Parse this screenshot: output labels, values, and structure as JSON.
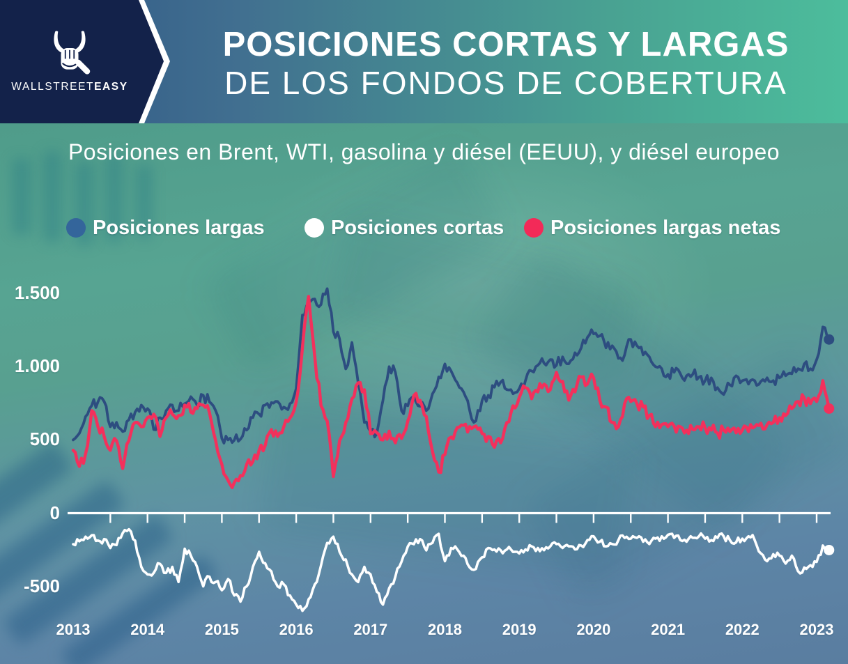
{
  "brand": {
    "word_regular": "WALLSTREET",
    "word_bold": "EASY",
    "icon": "bull-horns-fist-icon",
    "panel_color": "#13224a"
  },
  "header": {
    "title_line1": "POSICIONES CORTAS Y LARGAS",
    "title_line2": "DE LOS FONDOS DE COBERTURA"
  },
  "subtitle": "Posiciones en Brent, WTI, gasolina y diésel (EEUU), y diésel europeo",
  "legend": [
    {
      "label": "Posiciones largas",
      "color": "#34659b"
    },
    {
      "label": "Posiciones cortas",
      "color": "#ffffff"
    },
    {
      "label": "Posiciones largas netas",
      "color": "#f32a58"
    }
  ],
  "chart_data": {
    "type": "line",
    "title": "Posiciones cortas y largas de los fondos de cobertura",
    "x_unit": "months",
    "x_start": "2013-01",
    "x_end": "2023-03",
    "points_per_year": 12,
    "x_tick_labels": [
      "2013",
      "2014",
      "2015",
      "2016",
      "2017",
      "2018",
      "2019",
      "2020",
      "2021",
      "2022",
      "2023"
    ],
    "y_ticks": [
      {
        "label": "1.500",
        "value": 1500
      },
      {
        "label": "1.000",
        "value": 1000
      },
      {
        "label": "500",
        "value": 500
      },
      {
        "label": "0",
        "value": 0
      },
      {
        "label": "-500",
        "value": -500
      }
    ],
    "ylim": [
      -700,
      1600
    ],
    "grid": "none",
    "zero_axis": {
      "color": "#ffffff",
      "half_year_ticks": true
    },
    "legend_position": "top",
    "series": [
      {
        "name": "Posiciones largas",
        "color": "#2d4d80",
        "end_dot": true,
        "values": [
          500,
          545,
          660,
          735,
          760,
          762,
          590,
          620,
          557,
          638,
          690,
          738,
          714,
          571,
          652,
          700,
          738,
          700,
          748,
          795,
          738,
          805,
          760,
          700,
          510,
          500,
          498,
          505,
          567,
          652,
          676,
          738,
          755,
          762,
          724,
          748,
          850,
          1352,
          1430,
          1462,
          1424,
          1533,
          1240,
          1190,
          985,
          1165,
          890,
          620,
          557,
          543,
          770,
          1000,
          962,
          700,
          733,
          800,
          730,
          700,
          815,
          930,
          1019,
          971,
          890,
          828,
          700,
          630,
          770,
          805,
          860,
          895,
          843,
          815,
          850,
          905,
          971,
          1010,
          1024,
          1048,
          1010,
          1067,
          1020,
          1095,
          1129,
          1200,
          1224,
          1210,
          1129,
          1143,
          1057,
          1081,
          1186,
          1143,
          1081,
          1067,
          1000,
          986,
          948,
          962,
          952,
          938,
          948,
          929,
          905,
          924,
          857,
          810,
          876,
          938,
          905,
          881,
          905,
          900,
          924,
          905,
          924,
          938,
          952,
          986,
          1019,
          986,
          1048,
          1271,
          1186
        ]
      },
      {
        "name": "Posiciones cortas",
        "color": "#ffffff",
        "end_dot": true,
        "values": [
          -212,
          -192,
          -161,
          -151,
          -187,
          -177,
          -238,
          -218,
          -136,
          -110,
          -187,
          -367,
          -418,
          -408,
          -346,
          -408,
          -367,
          -470,
          -243,
          -290,
          -367,
          -500,
          -434,
          -470,
          -526,
          -450,
          -562,
          -604,
          -500,
          -367,
          -264,
          -342,
          -398,
          -500,
          -486,
          -562,
          -624,
          -667,
          -588,
          -486,
          -357,
          -203,
          -161,
          -264,
          -316,
          -418,
          -470,
          -367,
          -418,
          -536,
          -624,
          -512,
          -434,
          -331,
          -228,
          -212,
          -177,
          -254,
          -203,
          -141,
          -328,
          -238,
          -248,
          -290,
          -371,
          -381,
          -301,
          -238,
          -248,
          -253,
          -248,
          -265,
          -275,
          -248,
          -227,
          -238,
          -253,
          -227,
          -211,
          -238,
          -227,
          -248,
          -221,
          -184,
          -158,
          -195,
          -227,
          -211,
          -184,
          -169,
          -174,
          -169,
          -195,
          -211,
          -174,
          -158,
          -148,
          -169,
          -184,
          -195,
          -169,
          -158,
          -174,
          -184,
          -169,
          -158,
          -184,
          -200,
          -174,
          -158,
          -184,
          -275,
          -328,
          -280,
          -290,
          -344,
          -290,
          -397,
          -371,
          -355,
          -333,
          -221,
          -252
        ]
      },
      {
        "name": "Posiciones largas netas",
        "color": "#f3305c",
        "end_dot": true,
        "values": [
          429,
          319,
          405,
          700,
          590,
          524,
          429,
          495,
          305,
          495,
          619,
          590,
          652,
          676,
          524,
          652,
          676,
          667,
          738,
          690,
          714,
          738,
          686,
          495,
          333,
          224,
          210,
          257,
          333,
          352,
          429,
          462,
          571,
          524,
          590,
          650,
          760,
          1129,
          1480,
          1066,
          733,
          629,
          250,
          495,
          619,
          780,
          890,
          843,
          543,
          550,
          500,
          560,
          480,
          510,
          629,
          805,
          770,
          660,
          420,
          280,
          400,
          519,
          585,
          600,
          592,
          595,
          543,
          524,
          450,
          480,
          619,
          733,
          790,
          857,
          781,
          828,
          881,
          843,
          962,
          900,
          771,
          828,
          929,
          881,
          924,
          771,
          724,
          619,
          590,
          748,
          762,
          748,
          724,
          667,
          590,
          605,
          590,
          595,
          590,
          567,
          571,
          590,
          581,
          567,
          548,
          567,
          557,
          548,
          567,
          557,
          590,
          614,
          605,
          619,
          652,
          667,
          714,
          762,
          786,
          748,
          762,
          905,
          714
        ]
      }
    ]
  }
}
